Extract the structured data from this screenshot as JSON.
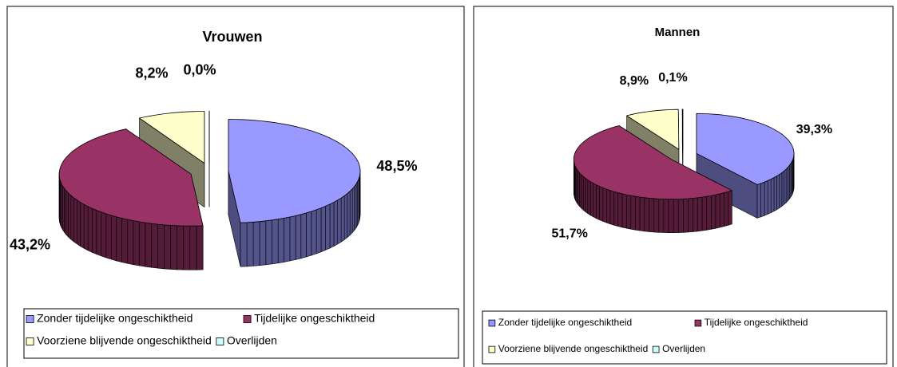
{
  "chart_data": [
    {
      "type": "pie3d",
      "title": "Vrouwen",
      "categories": [
        "Zonder tijdelijke ongeschiktheid",
        "Tijdelijke ongeschiktheid",
        "Voorziene blijvende ongeschiktheid",
        "Overlijden"
      ],
      "values": [
        48.5,
        43.2,
        8.2,
        0.0
      ],
      "value_labels": [
        "48,5%",
        "43,2%",
        "8,2%",
        "0,0%"
      ],
      "colors": [
        "#9999ff",
        "#993366",
        "#ffffcc",
        "#ccffff"
      ],
      "legend": "bottom"
    },
    {
      "type": "pie3d",
      "title": "Mannen",
      "categories": [
        "Zonder tijdelijke ongeschiktheid",
        "Tijdelijke ongeschiktheid",
        "Voorziene blijvende ongeschiktheid",
        "Overlijden"
      ],
      "values": [
        39.3,
        51.7,
        8.9,
        0.1
      ],
      "value_labels": [
        "39,3%",
        "51,7%",
        "8,9%",
        "0,1%"
      ],
      "colors": [
        "#9999ff",
        "#993366",
        "#ffffcc",
        "#ccffff"
      ],
      "legend": "bottom"
    }
  ]
}
